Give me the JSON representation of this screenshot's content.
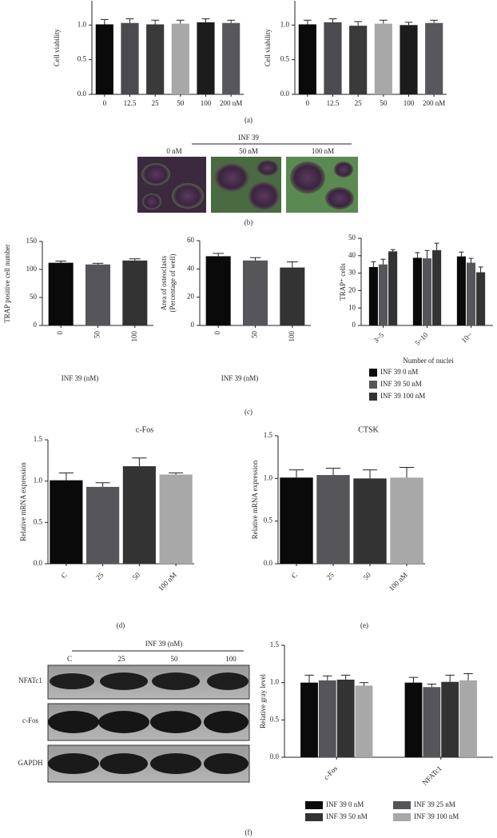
{
  "chart_data": [
    {
      "type": "bar",
      "ylabel": "Cell viability",
      "categories": [
        "0",
        "12.5",
        "25",
        "50",
        "100",
        "200 nM"
      ],
      "values": [
        1.01,
        1.03,
        1.01,
        1.02,
        1.04,
        1.03
      ],
      "errors": [
        0.07,
        0.06,
        0.06,
        0.05,
        0.05,
        0.04
      ],
      "colors": [
        "#0a0a0a",
        "#4a4a4f",
        "#3a3a3a",
        "#a8a8a8",
        "#1c1c1c",
        "#58585c"
      ],
      "ylim": [
        0,
        1.35
      ],
      "yticks": [
        {
          "value": 0,
          "label": "0.0"
        },
        {
          "value": 0.5,
          "label": "0.5"
        },
        {
          "value": 1,
          "label": "1.0"
        }
      ]
    },
    {
      "type": "bar",
      "ylabel": "Cell viability",
      "categories": [
        "0",
        "12.5",
        "25",
        "50",
        "100",
        "200 nM"
      ],
      "values": [
        1.01,
        1.04,
        0.99,
        1.02,
        1.0,
        1.03
      ],
      "errors": [
        0.06,
        0.05,
        0.06,
        0.05,
        0.04,
        0.04
      ],
      "colors": [
        "#0a0a0a",
        "#4a4a4f",
        "#3a3a3a",
        "#a8a8a8",
        "#1c1c1c",
        "#58585c"
      ],
      "ylim": [
        0,
        1.35
      ],
      "yticks": [
        {
          "value": 0,
          "label": "0.0"
        },
        {
          "value": 0.5,
          "label": "0.5"
        },
        {
          "value": 1,
          "label": "1.0"
        }
      ]
    },
    {
      "type": "bar",
      "ylabel": "TRAP positive cell number",
      "xlabel": "INF 39 (nM)",
      "categories": [
        "0",
        "50",
        "100"
      ],
      "values": [
        112,
        109,
        116
      ],
      "errors": [
        3,
        2,
        3
      ],
      "colors": [
        "#0a0a0a",
        "#55555a",
        "#333333"
      ],
      "ylim": [
        0,
        150
      ],
      "yticks": [
        0,
        50,
        100,
        150
      ]
    },
    {
      "type": "bar",
      "ylabel": [
        "Area of osteoclasts",
        "(Percentage of well)"
      ],
      "xlabel": "INF 39 (nM)",
      "categories": [
        "0",
        "50",
        "100"
      ],
      "values": [
        49,
        46,
        41
      ],
      "errors": [
        2,
        2,
        4
      ],
      "colors": [
        "#0a0a0a",
        "#55555a",
        "#333333"
      ],
      "ylim": [
        0,
        60
      ],
      "yticks": [
        0,
        20,
        40,
        60
      ]
    },
    {
      "type": "bar",
      "ylabel": "TRAP⁺ cells",
      "xlabel": "Number of nuclei",
      "categories": [
        "3~5",
        "5~10",
        "10~"
      ],
      "series": [
        {
          "name": "INF 39 0 nM",
          "color": "#0a0a0a",
          "values": [
            33.5,
            38.8,
            39.6
          ],
          "errors": [
            3,
            3,
            2.5
          ]
        },
        {
          "name": "INF 39 50 nM",
          "color": "#55555a",
          "values": [
            35,
            38.5,
            36
          ],
          "errors": [
            3,
            4.5,
            2.5
          ]
        },
        {
          "name": "INF 39 100 nM",
          "color": "#333333",
          "values": [
            42.5,
            43.2,
            30.5
          ],
          "errors": [
            1,
            4,
            3
          ]
        }
      ],
      "ylim": [
        0,
        50
      ],
      "yticks": [
        0,
        10,
        20,
        30,
        40,
        50
      ]
    },
    {
      "type": "bar",
      "title": "c-Fos",
      "ylabel": "Relative mRNA expression",
      "categories": [
        "C",
        "25",
        "50",
        "100 nM"
      ],
      "values": [
        1.01,
        0.93,
        1.18,
        1.08
      ],
      "errors": [
        0.09,
        0.05,
        0.1,
        0.02
      ],
      "colors": [
        "#0a0a0a",
        "#55555a",
        "#333333",
        "#a8a8a8"
      ],
      "ylim": [
        0,
        1.5
      ],
      "yticks": [
        {
          "value": 0,
          "label": "0.0"
        },
        {
          "value": 0.5,
          "label": "0.5"
        },
        {
          "value": 1,
          "label": "1.0"
        },
        {
          "value": 1.5,
          "label": "1.5"
        }
      ]
    },
    {
      "type": "bar",
      "title": "CTSK",
      "ylabel": "Relative mRNA expression",
      "categories": [
        "C",
        "25",
        "50",
        "100 nM"
      ],
      "values": [
        1.01,
        1.04,
        1.0,
        1.01
      ],
      "errors": [
        0.09,
        0.08,
        0.1,
        0.12
      ],
      "colors": [
        "#0a0a0a",
        "#55555a",
        "#333333",
        "#a8a8a8"
      ],
      "ylim": [
        0,
        1.5
      ],
      "yticks": [
        {
          "value": 0,
          "label": "0.0"
        },
        {
          "value": 0.5,
          "label": "0.5"
        },
        {
          "value": 1,
          "label": "1.0"
        },
        {
          "value": 1.5,
          "label": "1.5"
        }
      ]
    },
    {
      "type": "bar",
      "ylabel": "Relative gray level",
      "categories": [
        "c-Fos",
        "NFATc1"
      ],
      "series": [
        {
          "name": "INF 39 0 nM",
          "color": "#0a0a0a",
          "values": [
            1.0,
            1.0
          ],
          "errors": [
            0.1,
            0.07
          ]
        },
        {
          "name": "INF 39 25 nM",
          "color": "#55555a",
          "values": [
            1.03,
            0.94
          ],
          "errors": [
            0.06,
            0.04
          ]
        },
        {
          "name": "INF 39 50 nM",
          "color": "#333333",
          "values": [
            1.04,
            1.01
          ],
          "errors": [
            0.06,
            0.09
          ]
        },
        {
          "name": "INF 39 100 nM",
          "color": "#a8a8a8",
          "values": [
            0.96,
            1.03
          ],
          "errors": [
            0.04,
            0.09
          ]
        }
      ],
      "ylim": [
        0,
        1.5
      ],
      "yticks": [
        {
          "value": 0,
          "label": "0.0"
        },
        {
          "value": 0.5,
          "label": "0.5"
        },
        {
          "value": 1,
          "label": "1.0"
        },
        {
          "value": 1.5,
          "label": "1.5"
        }
      ]
    }
  ],
  "panel_labels": [
    "(a)",
    "(b)",
    "(c)",
    "(d)",
    "(e)",
    "(f)"
  ],
  "panel_b": {
    "header": "INF 39",
    "columns": [
      "0 nM",
      "50 nM",
      "100 nM"
    ]
  },
  "blot": {
    "header": "INF 39 (nM)",
    "lanes": [
      "C",
      "25",
      "50",
      "100"
    ],
    "rows": [
      "NFATc1",
      "c-Fos",
      "GAPDH"
    ]
  }
}
